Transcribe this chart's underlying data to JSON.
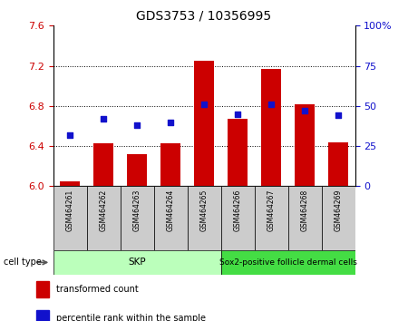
{
  "title": "GDS3753 / 10356995",
  "samples": [
    "GSM464261",
    "GSM464262",
    "GSM464263",
    "GSM464264",
    "GSM464265",
    "GSM464266",
    "GSM464267",
    "GSM464268",
    "GSM464269"
  ],
  "transformed_count": [
    6.05,
    6.43,
    6.32,
    6.43,
    7.25,
    6.67,
    7.17,
    6.82,
    6.44
  ],
  "percentile_rank": [
    32,
    42,
    38,
    40,
    51,
    45,
    51,
    47,
    44
  ],
  "ylim_left": [
    6.0,
    7.6
  ],
  "ylim_right": [
    0,
    100
  ],
  "yticks_left": [
    6.0,
    6.4,
    6.8,
    7.2,
    7.6
  ],
  "yticks_right": [
    0,
    25,
    50,
    75,
    100
  ],
  "bar_color": "#cc0000",
  "dot_color": "#1111cc",
  "skp_color": "#bbffbb",
  "sox2_color": "#44dd44",
  "gray_box": "#cccccc",
  "cell_type_label": "cell type",
  "legend_bar": "transformed count",
  "legend_dot": "percentile rank within the sample",
  "tick_color_left": "#cc0000",
  "tick_color_right": "#1111cc",
  "skp_range": [
    0,
    4
  ],
  "sox2_range": [
    5,
    8
  ]
}
